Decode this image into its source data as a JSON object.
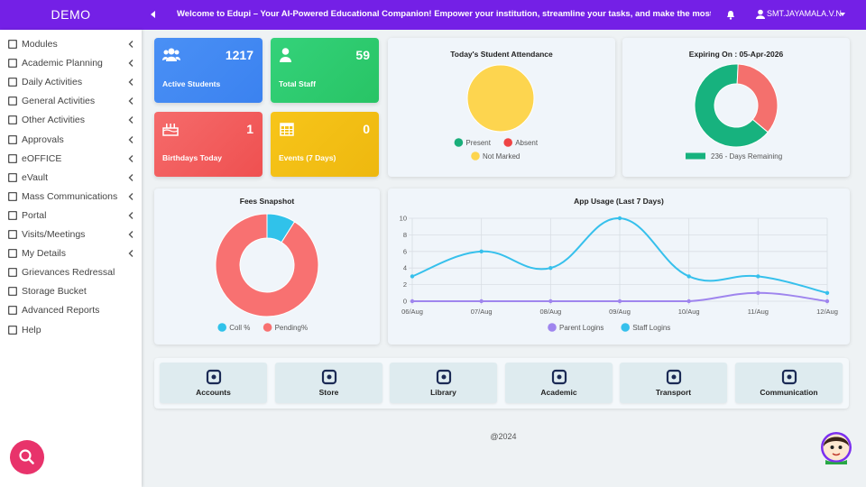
{
  "header": {
    "brand": "DEMO",
    "marquee": "Welcome to Edupi – Your AI-Powered Educational Companion! Empower your institution, streamline your tasks, and make the most of every fe",
    "user": "SMT.JAYAMALA.V.N"
  },
  "sidebar": {
    "menu": [
      {
        "label": "Modules",
        "submenu": true
      },
      {
        "label": "Academic Planning",
        "submenu": true
      },
      {
        "label": "Daily Activities",
        "submenu": true
      },
      {
        "label": "General Activities",
        "submenu": true
      },
      {
        "label": "Other Activities",
        "submenu": true
      },
      {
        "label": "Approvals",
        "submenu": true
      },
      {
        "label": "eOFFICE",
        "submenu": true
      },
      {
        "label": "eVault",
        "submenu": true
      },
      {
        "label": "Mass Communications",
        "submenu": true
      },
      {
        "label": "Portal",
        "submenu": true
      },
      {
        "label": "Visits/Meetings",
        "submenu": true
      },
      {
        "label": "My Details",
        "submenu": true
      },
      {
        "label": "Grievances Redressal",
        "submenu": false
      },
      {
        "label": "Storage Bucket",
        "submenu": false
      },
      {
        "label": "Advanced Reports",
        "submenu": false
      },
      {
        "label": "Help",
        "submenu": false
      }
    ]
  },
  "stats": [
    {
      "value": 1217,
      "label": "Active Students"
    },
    {
      "value": 59,
      "label": "Total Staff"
    },
    {
      "value": 1,
      "label": "Birthdays Today"
    },
    {
      "value": 0,
      "label": "Events (7 Days)"
    }
  ],
  "chart_data": [
    {
      "type": "pie",
      "title": "Today's Student Attendance",
      "categories": [
        "Present",
        "Absent",
        "Not Marked"
      ],
      "values": [
        0,
        0,
        100
      ],
      "colors": [
        "#1aae7a",
        "#ef4444",
        "#fdd54f"
      ],
      "legend_marker": "circle"
    },
    {
      "type": "donut",
      "title": "Expiring On : 05-Apr-2026",
      "categories": [
        "236 - Days Remaining",
        null
      ],
      "values": [
        236,
        129
      ],
      "colors": [
        "#17b27e",
        "#f4706d"
      ],
      "legend_marker": "rect"
    },
    {
      "type": "donut",
      "title": "Fees Snapshot",
      "categories": [
        "Coll %",
        "Pending%"
      ],
      "values": [
        9,
        91
      ],
      "colors": [
        "#30c2ea",
        "#f87171"
      ],
      "legend_marker": "circle"
    },
    {
      "type": "line",
      "title": "App Usage (Last 7 Days)",
      "categories": [
        "06/Aug",
        "07/Aug",
        "08/Aug",
        "09/Aug",
        "10/Aug",
        "11/Aug",
        "12/Aug"
      ],
      "series": [
        {
          "name": "Parent Logins",
          "color": "#9f85ee",
          "values": [
            0,
            0,
            0,
            0,
            0,
            1,
            0
          ]
        },
        {
          "name": "Staff Logins",
          "color": "#36c0ec",
          "values": [
            3,
            6,
            4,
            10,
            3,
            3,
            1
          ]
        }
      ],
      "ylim": [
        0,
        10
      ],
      "yticks": [
        0,
        2,
        4,
        6,
        8,
        10
      ],
      "grid": true,
      "legend_marker": "circle"
    }
  ],
  "quick_links": [
    "Accounts",
    "Store",
    "Library",
    "Academic",
    "Transport",
    "Communication"
  ],
  "footer": "@2024"
}
